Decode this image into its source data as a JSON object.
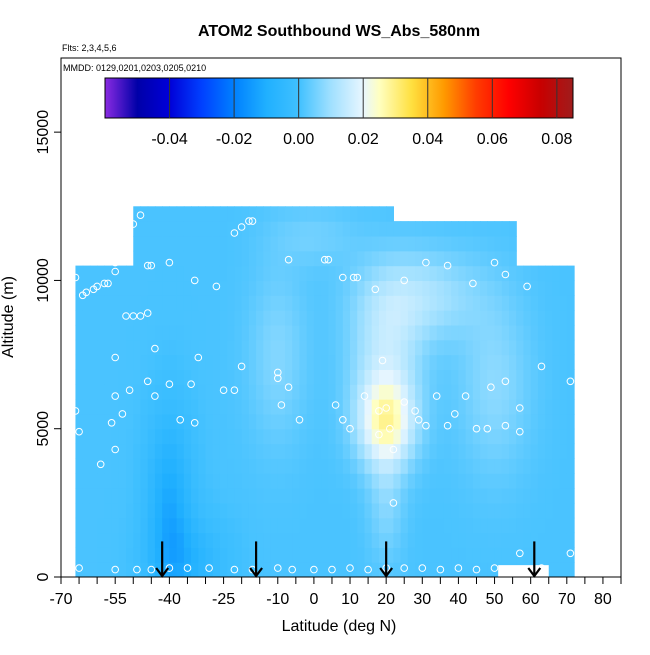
{
  "chart_data": {
    "type": "heatmap",
    "title": "ATOM2 Southbound WS_Abs_580nm",
    "annotations": [
      "Flts: 2,3,4,5,6",
      "MMDD: 0129,0201,0203,0205,0210"
    ],
    "xlabel": "Latitude (deg N)",
    "ylabel": "Altitude (m)",
    "xlim": [
      -70,
      85
    ],
    "ylim": [
      0,
      17500
    ],
    "x_ticks": [
      -70,
      -65,
      -60,
      -55,
      -50,
      -45,
      -40,
      -35,
      -30,
      -25,
      -20,
      -15,
      -10,
      -5,
      0,
      5,
      10,
      15,
      20,
      25,
      30,
      35,
      40,
      45,
      50,
      55,
      60,
      65,
      70,
      75,
      80,
      85
    ],
    "x_tick_labels": [
      {
        "value": -70,
        "label": "-70"
      },
      {
        "value": -55,
        "label": "-55"
      },
      {
        "value": -40,
        "label": "-40"
      },
      {
        "value": -25,
        "label": "-25"
      },
      {
        "value": -10,
        "label": "-10"
      },
      {
        "value": 0,
        "label": "0"
      },
      {
        "value": 10,
        "label": "10"
      },
      {
        "value": 20,
        "label": "20"
      },
      {
        "value": 30,
        "label": "30"
      },
      {
        "value": 40,
        "label": "40"
      },
      {
        "value": 50,
        "label": "50"
      },
      {
        "value": 60,
        "label": "60"
      },
      {
        "value": 70,
        "label": "70"
      },
      {
        "value": 80,
        "label": "80"
      }
    ],
    "y_ticks": [
      0,
      5000,
      10000,
      15000
    ],
    "y_tick_labels": [
      "0",
      "5000",
      "10000",
      "15000"
    ],
    "colorbar": {
      "range": [
        -0.06,
        0.085
      ],
      "tick_values": [
        -0.04,
        -0.02,
        0.0,
        0.02,
        0.04,
        0.06,
        0.08
      ],
      "tick_labels": [
        "-0.04",
        "-0.02",
        "0.00",
        "0.02",
        "0.04",
        "0.06",
        "0.08"
      ],
      "stops": [
        {
          "value": -0.06,
          "color": "#8a2be2"
        },
        {
          "value": -0.05,
          "color": "#0000a8"
        },
        {
          "value": -0.04,
          "color": "#0000d8"
        },
        {
          "value": -0.03,
          "color": "#0040ff"
        },
        {
          "value": -0.02,
          "color": "#0080ff"
        },
        {
          "value": -0.01,
          "color": "#20b0ff"
        },
        {
          "value": 0.0,
          "color": "#40c0ff"
        },
        {
          "value": 0.01,
          "color": "#a0e0ff"
        },
        {
          "value": 0.02,
          "color": "#e8f6ff"
        },
        {
          "value": 0.025,
          "color": "#ffffc0"
        },
        {
          "value": 0.035,
          "color": "#ffe040"
        },
        {
          "value": 0.045,
          "color": "#ff9a00"
        },
        {
          "value": 0.055,
          "color": "#ff3c00"
        },
        {
          "value": 0.065,
          "color": "#ff0000"
        },
        {
          "value": 0.075,
          "color": "#c80000"
        },
        {
          "value": 0.085,
          "color": "#a01c1c"
        }
      ]
    },
    "coverage": {
      "lat_range": [
        -66,
        72
      ],
      "alt_range": [
        0,
        12300
      ]
    },
    "field_features": [
      {
        "lat": -40,
        "alt": 2500,
        "lat_w": 6,
        "alt_w": 3000,
        "value": -0.012
      },
      {
        "lat": -35,
        "alt": 500,
        "lat_w": 10,
        "alt_w": 1500,
        "value": -0.008
      },
      {
        "lat": 20,
        "alt": 5200,
        "lat_w": 8,
        "alt_w": 1500,
        "value": 0.022
      },
      {
        "lat": 20,
        "alt": 7500,
        "lat_w": 10,
        "alt_w": 2500,
        "value": 0.012
      },
      {
        "lat": 30,
        "alt": 9500,
        "lat_w": 16,
        "alt_w": 1500,
        "value": 0.01
      },
      {
        "lat": 20,
        "alt": 2500,
        "lat_w": 5,
        "alt_w": 2000,
        "value": 0.006
      },
      {
        "lat": -10,
        "alt": 7500,
        "lat_w": 8,
        "alt_w": 3000,
        "value": 0.006
      },
      {
        "lat": 50,
        "alt": 6500,
        "lat_w": 10,
        "alt_w": 3000,
        "value": 0.007
      },
      {
        "lat": 0,
        "alt": 11500,
        "lat_w": 12,
        "alt_w": 1000,
        "value": 0.004
      }
    ],
    "flight_samples": [
      [
        -66,
        10100
      ],
      [
        -64,
        9500
      ],
      [
        -63,
        9600
      ],
      [
        -61,
        9700
      ],
      [
        -60,
        9800
      ],
      [
        -58,
        9900
      ],
      [
        -57,
        9900
      ],
      [
        -55,
        10600
      ],
      [
        -55,
        10300
      ],
      [
        -52,
        11700
      ],
      [
        -50,
        11900
      ],
      [
        -48,
        12200
      ],
      [
        -46,
        10500
      ],
      [
        -45,
        10500
      ],
      [
        -40,
        10600
      ],
      [
        -33,
        10000
      ],
      [
        -27,
        9800
      ],
      [
        -22,
        11600
      ],
      [
        -20,
        11800
      ],
      [
        -18,
        12000
      ],
      [
        -17,
        12000
      ],
      [
        -7,
        10700
      ],
      [
        3,
        10700
      ],
      [
        4,
        10700
      ],
      [
        8,
        10100
      ],
      [
        11,
        10100
      ],
      [
        12,
        10100
      ],
      [
        17,
        9700
      ],
      [
        25,
        10000
      ],
      [
        31,
        10600
      ],
      [
        37,
        10500
      ],
      [
        44,
        9900
      ],
      [
        50,
        10600
      ],
      [
        53,
        10200
      ],
      [
        59,
        9800
      ],
      [
        66,
        11300
      ],
      [
        68,
        11300
      ],
      [
        -52,
        8800
      ],
      [
        -50,
        8800
      ],
      [
        -48,
        8800
      ],
      [
        -46,
        8900
      ],
      [
        -44,
        7700
      ],
      [
        -55,
        7400
      ],
      [
        -32,
        7400
      ],
      [
        -20,
        7100
      ],
      [
        -10,
        6700
      ],
      [
        -10,
        6900
      ],
      [
        19,
        7300
      ],
      [
        63,
        7100
      ],
      [
        71,
        6600
      ],
      [
        -55,
        6100
      ],
      [
        -51,
        6300
      ],
      [
        -46,
        6600
      ],
      [
        -44,
        6100
      ],
      [
        -40,
        6500
      ],
      [
        -34,
        6500
      ],
      [
        -25,
        6300
      ],
      [
        -22,
        6300
      ],
      [
        -9,
        5800
      ],
      [
        -7,
        6400
      ],
      [
        6,
        5800
      ],
      [
        10,
        5000
      ],
      [
        14,
        6100
      ],
      [
        18,
        5600
      ],
      [
        21,
        5000
      ],
      [
        25,
        5900
      ],
      [
        28,
        5600
      ],
      [
        31,
        5100
      ],
      [
        34,
        6100
      ],
      [
        39,
        5500
      ],
      [
        42,
        6100
      ],
      [
        45,
        5000
      ],
      [
        49,
        6400
      ],
      [
        53,
        6600
      ],
      [
        57,
        5700
      ],
      [
        -66,
        5600
      ],
      [
        -65,
        4900
      ],
      [
        -56,
        5200
      ],
      [
        -53,
        5500
      ],
      [
        -37,
        5300
      ],
      [
        -33,
        5200
      ],
      [
        -4,
        5300
      ],
      [
        8,
        5300
      ],
      [
        20,
        5700
      ],
      [
        18,
        4800
      ],
      [
        22,
        4300
      ],
      [
        29,
        5300
      ],
      [
        37,
        5100
      ],
      [
        48,
        5000
      ],
      [
        53,
        5100
      ],
      [
        57,
        4900
      ],
      [
        -59,
        3800
      ],
      [
        -55,
        4300
      ],
      [
        22,
        2500
      ],
      [
        -65,
        300
      ],
      [
        -55,
        250
      ],
      [
        -49,
        250
      ],
      [
        -45,
        250
      ],
      [
        -40,
        300
      ],
      [
        -35,
        300
      ],
      [
        -29,
        300
      ],
      [
        -22,
        250
      ],
      [
        -17,
        250
      ],
      [
        -10,
        300
      ],
      [
        -6,
        250
      ],
      [
        0,
        250
      ],
      [
        5,
        250
      ],
      [
        10,
        300
      ],
      [
        15,
        250
      ],
      [
        20,
        300
      ],
      [
        25,
        300
      ],
      [
        30,
        300
      ],
      [
        35,
        250
      ],
      [
        40,
        300
      ],
      [
        45,
        250
      ],
      [
        50,
        300
      ],
      [
        57,
        800
      ],
      [
        63,
        300
      ],
      [
        71,
        800
      ]
    ],
    "arrows": [
      {
        "lat": -42
      },
      {
        "lat": -16
      },
      {
        "lat": 20
      },
      {
        "lat": 61
      }
    ],
    "grid": false,
    "legend": "colorbar top"
  }
}
